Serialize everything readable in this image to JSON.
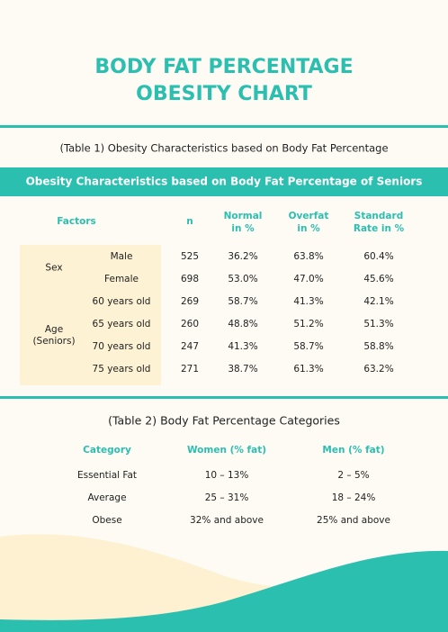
{
  "header": {
    "title": [
      "BODY FAT PERCENTAGE",
      "OBESITY CHART"
    ]
  },
  "table1": {
    "caption": "(Table 1) Obesity Characteristics based on Body Fat Percentage",
    "banner": "Obesity Characteristics based on Body Fat Percentage of Seniors",
    "columns": [
      [
        "Factors"
      ],
      [
        "n"
      ],
      [
        "Normal",
        "in %"
      ],
      [
        "Overfat",
        "in %"
      ],
      [
        "Standard",
        "Rate in %"
      ]
    ],
    "groups": [
      {
        "label": [
          "Sex"
        ],
        "rows": [
          {
            "label": "Male",
            "values": [
              "525",
              "36.2%",
              "63.8%",
              "60.4%"
            ]
          },
          {
            "label": "Female",
            "values": [
              "698",
              "53.0%",
              "47.0%",
              "45.6%"
            ]
          }
        ]
      },
      {
        "label": [
          "Age",
          "(Seniors)"
        ],
        "rows": [
          {
            "label": "60 years old",
            "values": [
              "269",
              "58.7%",
              "41.3%",
              "42.1%"
            ]
          },
          {
            "label": "65 years old",
            "values": [
              "260",
              "48.8%",
              "51.2%",
              "51.3%"
            ]
          },
          {
            "label": "70 years old",
            "values": [
              "247",
              "41.3%",
              "58.7%",
              "58.8%"
            ]
          },
          {
            "label": "75 years old",
            "values": [
              "271",
              "38.7%",
              "61.3%",
              "63.2%"
            ]
          }
        ]
      }
    ]
  },
  "table2": {
    "caption": "(Table 2) Body Fat Percentage Categories",
    "columns": [
      "Category",
      "Women (% fat)",
      "Men (% fat)"
    ],
    "rows": [
      [
        "Essential Fat",
        "10 – 13%",
        "2 – 5%"
      ],
      [
        "Average",
        "25 – 31%",
        "18 – 24%"
      ],
      [
        "Obese",
        "32% and above",
        "25% and above"
      ]
    ]
  }
}
